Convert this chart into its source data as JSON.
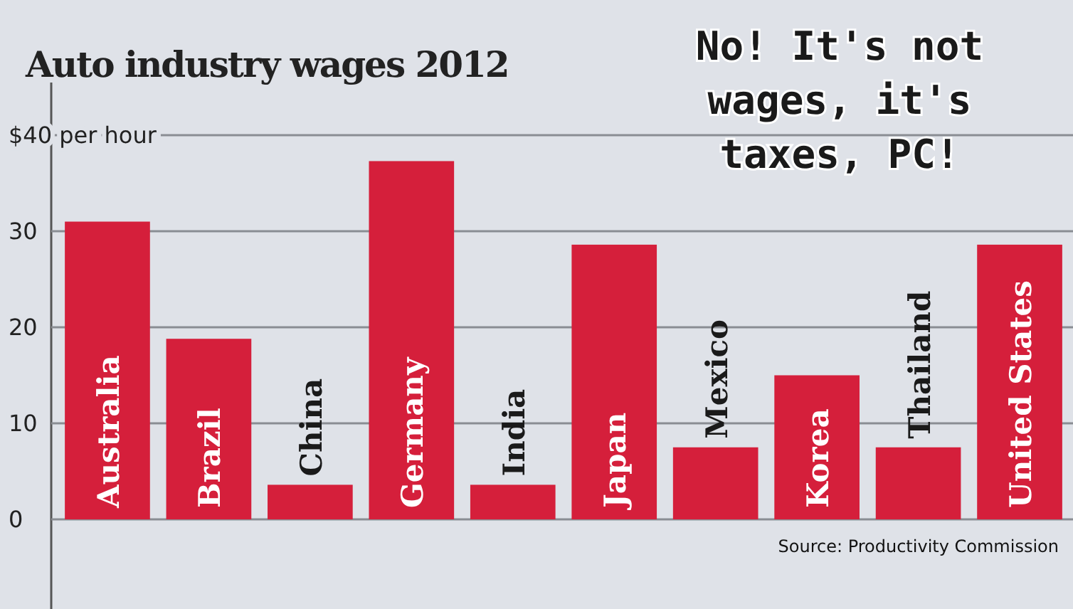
{
  "chart_data": {
    "type": "bar",
    "title": "Auto industry wages 2012",
    "categories": [
      "Australia",
      "Brazil",
      "China",
      "Germany",
      "India",
      "Japan",
      "Mexico",
      "Korea",
      "Thailand",
      "United States"
    ],
    "values": [
      31,
      18.8,
      3.6,
      37.3,
      3.6,
      28.6,
      7.5,
      15,
      7.5,
      28.6
    ],
    "color": "#d51f3b",
    "ylim": [
      0,
      40
    ],
    "yticks": [
      0,
      10,
      20,
      30,
      {
        "value": 40,
        "label": "$40 per hour"
      }
    ],
    "grid": "y",
    "annotations": [
      "No! It's not wages, it's taxes, PC!",
      "Source: Productivity Commission"
    ]
  }
}
